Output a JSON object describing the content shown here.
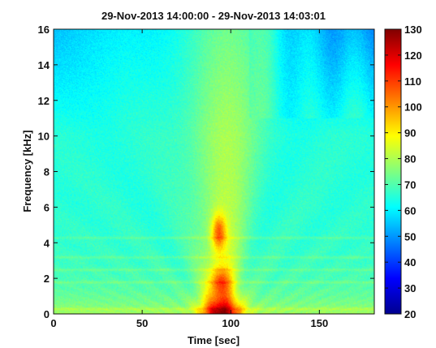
{
  "chart_data": {
    "type": "heatmap",
    "title": "29-Nov-2013 14:00:00 - 29-Nov-2013 14:03:01",
    "xlabel": "Time [sec]",
    "ylabel": "Frequency [kHz]",
    "xlim": [
      0,
      181
    ],
    "ylim": [
      0,
      16
    ],
    "x_ticks": [
      0,
      50,
      100,
      150
    ],
    "y_ticks": [
      0,
      2,
      4,
      6,
      8,
      10,
      12,
      14,
      16
    ],
    "colorbar": {
      "min": 20,
      "max": 130,
      "ticks": [
        20,
        30,
        40,
        50,
        60,
        70,
        80,
        90,
        100,
        110,
        120,
        130
      ],
      "colormap": "jet"
    },
    "grid": false,
    "description_of_field": "Spectrogram level (dB) over time and frequency; broad yellow-orange vertical plume centered near t=95 s reaching up to ~16 kHz, strongest (red, ~115-120) below 2 kHz and near 4-5 kHz at t≈90-100 s; background cyan-blue (~60-70) elsewhere, darker blue (~50-55) in upper corners; horizontal bands near 0.3, 1.8, 2.5, 3.2 and 4.3 kHz."
  },
  "colors": {
    "axis": "#111111",
    "background": "#ffffff"
  }
}
